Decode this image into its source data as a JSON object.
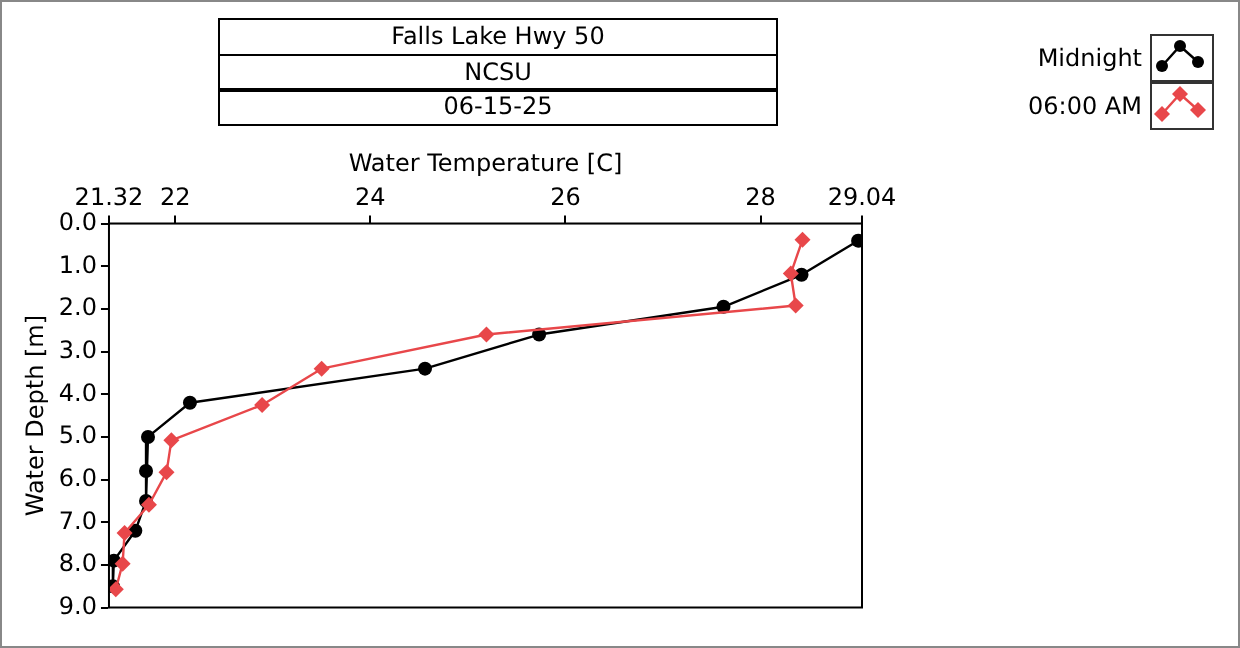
{
  "chart_data": {
    "type": "line",
    "orientation": "horizontal",
    "title": "Falls Lake Hwy 50",
    "subtitle": "NCSU",
    "annotations": [
      "06-15-25"
    ],
    "xlabel": "Water Temperature [C]",
    "ylabel": "Water Depth [m]",
    "xlim": [
      21.32,
      29.04
    ],
    "xticks": [
      21.32,
      22,
      24,
      26,
      28,
      29.04
    ],
    "ylim": [
      9,
      0
    ],
    "yticks": [
      {
        "value": 0,
        "label": "0.0"
      },
      {
        "value": 1,
        "label": "1.0"
      },
      {
        "value": 2,
        "label": "2.0"
      },
      {
        "value": 3,
        "label": "3.0"
      },
      {
        "value": 4,
        "label": "4.0"
      },
      {
        "value": 5,
        "label": "5.0"
      },
      {
        "value": 6,
        "label": "6.0"
      },
      {
        "value": 7,
        "label": "7.0"
      },
      {
        "value": 8,
        "label": "8.0"
      },
      {
        "value": 9,
        "label": "9.0"
      }
    ],
    "grid": false,
    "legend": "top right",
    "line_style": "solid",
    "series": [
      {
        "name": "Midnight",
        "color": "#000000",
        "marker": "circle",
        "x": [
          0.4,
          1.2,
          1.95,
          2.6,
          3.4,
          4.2,
          5.0,
          5.8,
          6.5,
          7.2,
          7.9,
          8.5
        ],
        "values": [
          29.0,
          28.42,
          27.62,
          25.73,
          24.56,
          22.15,
          21.72,
          21.7,
          21.7,
          21.59,
          21.37,
          21.36
        ]
      },
      {
        "name": "06:00 AM",
        "color": "#e8474a",
        "marker": "diamond",
        "x": [
          0.38,
          1.17,
          1.92,
          2.6,
          3.4,
          4.25,
          5.08,
          5.83,
          6.59,
          7.25,
          7.97,
          8.57
        ],
        "values": [
          28.43,
          28.31,
          28.36,
          25.19,
          23.5,
          22.89,
          21.96,
          21.91,
          21.73,
          21.48,
          21.46,
          21.39
        ]
      }
    ]
  }
}
